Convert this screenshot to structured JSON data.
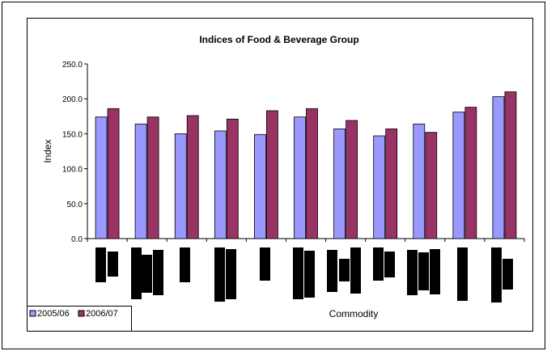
{
  "chart_data": {
    "type": "bar",
    "title": "Indices of Food & Beverage Group",
    "xlabel": "Commodity",
    "ylabel": "Index",
    "ylim": [
      0,
      250
    ],
    "yticks": [
      "0.0",
      "50.0",
      "100.0",
      "150.0",
      "200.0",
      "250.0"
    ],
    "grid": false,
    "legend_position": "bottom-left",
    "category_labels_note": "category tick labels are rendered as solid black blocks in the source image",
    "categories": [
      "",
      "",
      "",
      "",
      "",
      "",
      "",
      "",
      "",
      "",
      ""
    ],
    "series": [
      {
        "name": "2005/06",
        "color": "#9999ff",
        "values": [
          174,
          164,
          150,
          154,
          149,
          174,
          157,
          147,
          164,
          181,
          203
        ]
      },
      {
        "name": "2006/07",
        "color": "#993366",
        "values": [
          186,
          174,
          176,
          171,
          183,
          186,
          169,
          157,
          152,
          188,
          210
        ]
      }
    ]
  }
}
